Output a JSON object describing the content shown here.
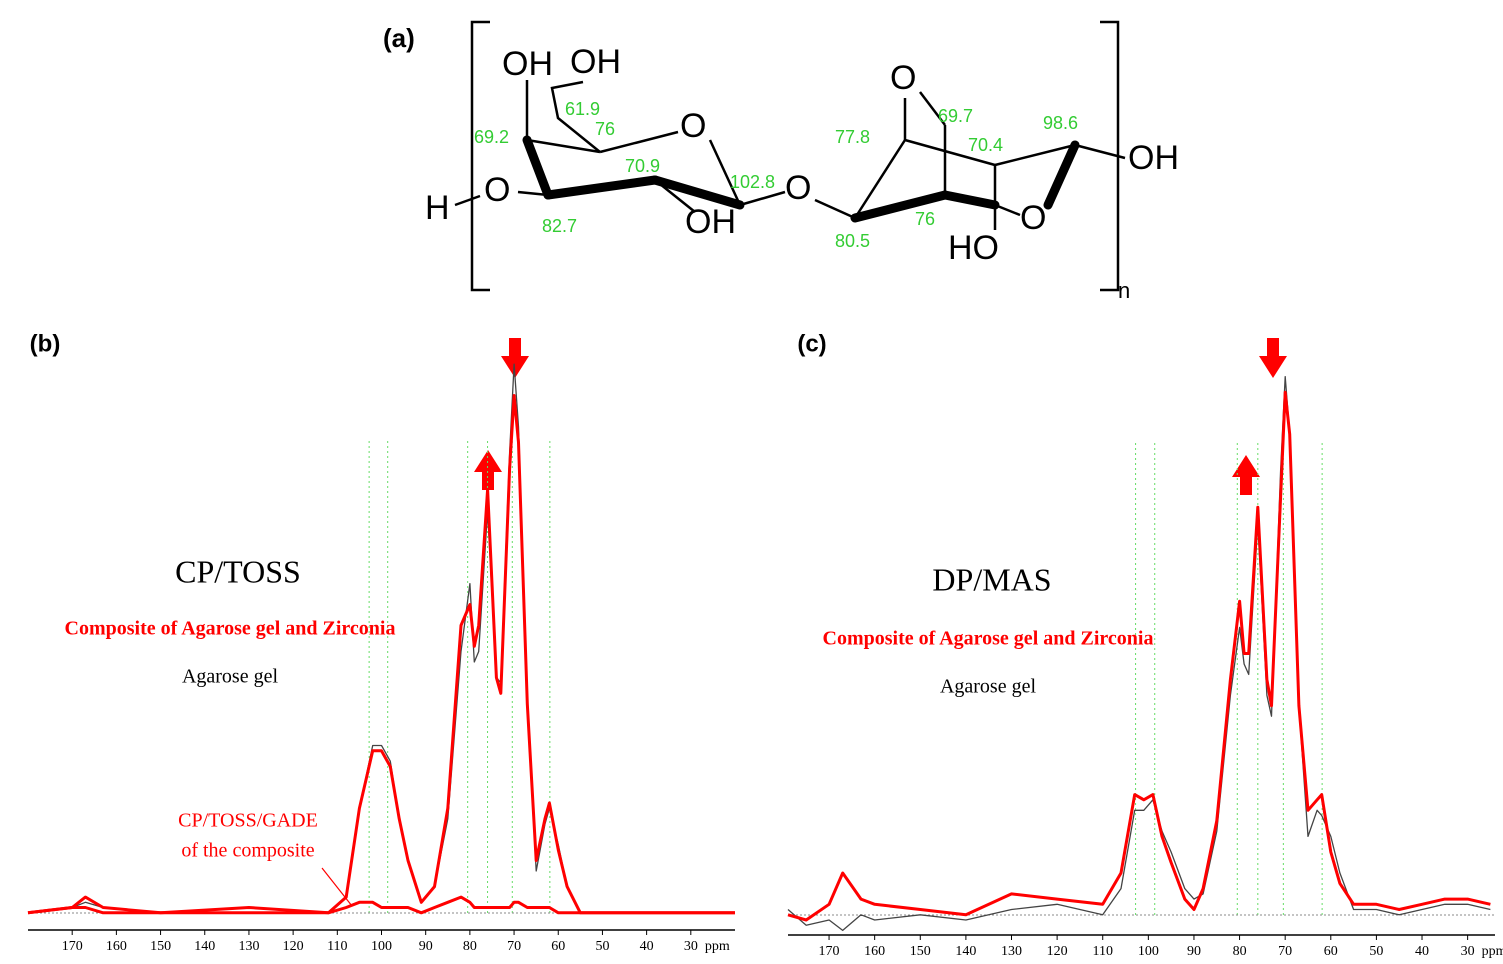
{
  "structure": {
    "panel_label": "(a)",
    "labels": [
      "OH",
      "OH",
      "61.9",
      "76",
      "69.2",
      "O",
      "70.9",
      "102.8",
      "O",
      "H",
      "O",
      "82.7",
      "OH",
      "77.8",
      "O",
      "69.7",
      "70.4",
      "98.6",
      "OH",
      "80.5",
      "76",
      "O",
      "HO",
      "n"
    ]
  },
  "chart_data": [
    {
      "type": "line",
      "panel_label": "(b)",
      "title": "CP/TOSS",
      "annotation": [
        "CP/TOSS/GADE",
        "of the composite"
      ],
      "x": [
        180,
        170,
        167,
        163,
        150,
        130,
        112,
        108,
        105,
        102,
        100,
        98,
        96,
        94,
        91,
        88,
        85,
        82,
        80,
        79,
        78,
        76,
        74,
        73,
        71,
        70,
        69,
        67,
        65,
        63,
        62,
        60,
        58,
        55,
        50,
        40,
        30,
        20
      ],
      "series": [
        {
          "name": "Agarose gel",
          "color": "#444444",
          "values": [
            0,
            1,
            2,
            1,
            0,
            0,
            0,
            3,
            20,
            32,
            32,
            29,
            18,
            10,
            2,
            5,
            18,
            50,
            63,
            48,
            50,
            77,
            45,
            44,
            88,
            105,
            93,
            40,
            8,
            17,
            20,
            13,
            5,
            0,
            0,
            0,
            0,
            0
          ]
        },
        {
          "name": "Composite of Agarose gel and Zirconia",
          "color": "#ff0000",
          "values": [
            0,
            1,
            3,
            1,
            0,
            0,
            0,
            3,
            20,
            31,
            31,
            28,
            18,
            10,
            2,
            5,
            20,
            55,
            59,
            51,
            55,
            81,
            45,
            42,
            85,
            99,
            90,
            40,
            10,
            18,
            21,
            12,
            5,
            0,
            0,
            0,
            0,
            0
          ]
        },
        {
          "color": "#ff0000",
          "values": [
            0,
            1,
            1,
            0,
            0,
            1,
            0,
            1,
            2,
            2,
            1,
            1,
            1,
            1,
            0,
            1,
            2,
            3,
            2,
            1,
            1,
            1,
            1,
            1,
            1,
            2,
            2,
            1,
            1,
            1,
            1,
            0,
            0,
            0,
            0,
            0,
            0,
            0
          ]
        }
      ],
      "xlim": [
        180,
        20
      ],
      "ylim": [
        -10,
        110
      ],
      "xticks": [
        170,
        160,
        150,
        140,
        130,
        120,
        110,
        100,
        90,
        80,
        70,
        60,
        50,
        40,
        30
      ],
      "x_label": "ppm",
      "peak_lines": [
        102.8,
        98.6,
        80.5,
        76,
        70.4,
        61.9
      ],
      "peak_line_color": "#66dd66"
    },
    {
      "type": "line",
      "panel_label": "(c)",
      "title": "DP/MAS",
      "x": [
        179,
        175,
        170,
        167,
        163,
        160,
        150,
        140,
        130,
        120,
        110,
        106,
        103,
        101,
        99,
        97,
        95,
        92,
        90,
        88,
        85,
        82,
        80,
        79,
        78,
        76,
        74,
        73,
        71,
        70,
        69,
        67,
        65,
        63,
        62,
        60,
        58,
        55,
        50,
        45,
        40,
        35,
        30,
        25
      ],
      "series": [
        {
          "name": "Agarose gel",
          "color": "#444444",
          "values": [
            1,
            -2,
            -1,
            -3,
            0,
            -1,
            0,
            -1,
            1,
            2,
            0,
            5,
            20,
            20,
            22,
            16,
            12,
            5,
            3,
            4,
            16,
            42,
            55,
            48,
            46,
            75,
            42,
            38,
            85,
            103,
            92,
            40,
            15,
            20,
            19,
            15,
            8,
            1,
            1,
            0,
            1,
            2,
            2,
            1
          ]
        },
        {
          "name": "Composite of Agarose gel and Zirconia",
          "color": "#ff0000",
          "values": [
            0,
            -1,
            2,
            8,
            3,
            2,
            1,
            0,
            4,
            3,
            2,
            8,
            23,
            22,
            23,
            15,
            10,
            3,
            1,
            5,
            18,
            45,
            60,
            50,
            50,
            78,
            45,
            40,
            80,
            100,
            92,
            40,
            20,
            22,
            23,
            12,
            6,
            2,
            2,
            1,
            2,
            3,
            3,
            2
          ]
        }
      ],
      "xlim": [
        179,
        24
      ],
      "ylim": [
        -10,
        110
      ],
      "xticks": [
        170,
        160,
        150,
        140,
        130,
        120,
        110,
        100,
        90,
        80,
        70,
        60,
        50,
        40,
        30
      ],
      "x_label": "ppm",
      "peak_lines": [
        102.8,
        98.6,
        80.5,
        76,
        70.4,
        61.9
      ],
      "peak_line_color": "#66dd66"
    }
  ]
}
